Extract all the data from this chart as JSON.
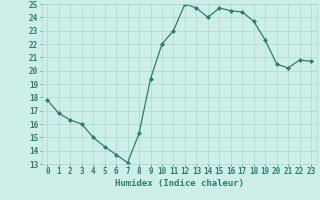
{
  "x": [
    0,
    1,
    2,
    3,
    4,
    5,
    6,
    7,
    8,
    9,
    10,
    11,
    12,
    13,
    14,
    15,
    16,
    17,
    18,
    19,
    20,
    21,
    22,
    23
  ],
  "y": [
    17.8,
    16.8,
    16.3,
    16.0,
    15.0,
    14.3,
    13.7,
    13.1,
    15.3,
    19.4,
    22.0,
    23.0,
    25.0,
    24.7,
    24.0,
    24.7,
    24.5,
    24.4,
    23.7,
    22.3,
    20.5,
    20.2,
    20.8,
    20.7
  ],
  "line_color": "#2e7d6e",
  "marker": "D",
  "marker_size": 2,
  "bg_color": "#cdeee9",
  "grid_color": "#aed8d0",
  "xlabel": "Humidex (Indice chaleur)",
  "ylim": [
    13,
    25
  ],
  "xlim": [
    -0.5,
    23.5
  ],
  "yticks": [
    13,
    14,
    15,
    16,
    17,
    18,
    19,
    20,
    21,
    22,
    23,
    24,
    25
  ],
  "xticks": [
    0,
    1,
    2,
    3,
    4,
    5,
    6,
    7,
    8,
    9,
    10,
    11,
    12,
    13,
    14,
    15,
    16,
    17,
    18,
    19,
    20,
    21,
    22,
    23
  ],
  "xlabel_fontsize": 6.5,
  "tick_fontsize": 5.5,
  "label_color": "#2e7d6e",
  "linewidth": 0.9
}
